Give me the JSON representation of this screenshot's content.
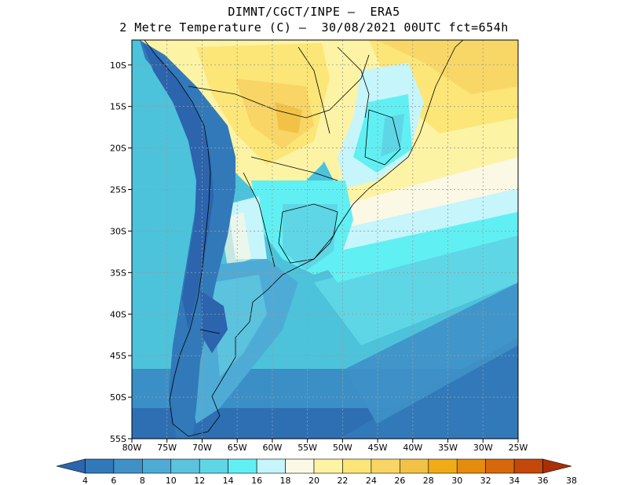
{
  "title": {
    "line1": "DIMNT/CGCT/INPE –  ERA5",
    "line2": "2 Metre Temperature (C) –  30/08/2021 00UTC fct=654h"
  },
  "map": {
    "lon_range": [
      -80,
      -25
    ],
    "lat_range": [
      -55,
      -7
    ],
    "lat_labels": [
      "10S",
      "15S",
      "20S",
      "25S",
      "30S",
      "35S",
      "40S",
      "45S",
      "50S",
      "55S"
    ],
    "lon_labels": [
      "80W",
      "75W",
      "70W",
      "65W",
      "60W",
      "55W",
      "50W",
      "45W",
      "40W",
      "35W",
      "30W",
      "25W"
    ],
    "gridlines": true
  },
  "colorbar": {
    "labels": [
      "4",
      "6",
      "8",
      "10",
      "12",
      "14",
      "16",
      "18",
      "20",
      "22",
      "24",
      "26",
      "28",
      "30",
      "32",
      "34",
      "36",
      "38"
    ],
    "colors": [
      "#2c64ae",
      "#3179b9",
      "#3f91c8",
      "#4eabd6",
      "#5cc3df",
      "#5fd6e6",
      "#60f0f3",
      "#c6f5fb",
      "#fbf8e6",
      "#fcf3a4",
      "#fbe677",
      "#f8d565",
      "#f1c245",
      "#f1ab17",
      "#e58b0d",
      "#d7680c",
      "#c4480a",
      "#a82f06"
    ]
  }
}
